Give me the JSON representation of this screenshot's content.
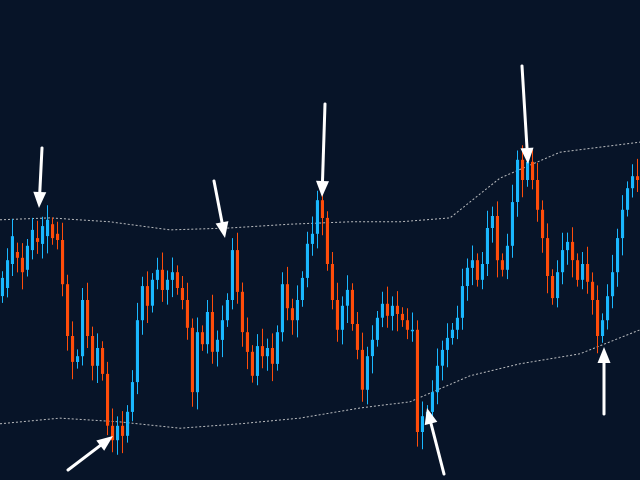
{
  "chart_data": {
    "type": "candlestick",
    "title": "",
    "xlabel": "",
    "ylabel": "",
    "grid": false,
    "legend": "none",
    "background": "#071428",
    "colors": {
      "bull": "#1ab8ff",
      "bear": "#ff4d0a",
      "band": "#d8d8d8",
      "arrow": "#ffffff"
    },
    "ylim": [
      0,
      100
    ],
    "xlim": [
      0,
      128
    ],
    "bands": [
      {
        "name": "",
        "points": [
          [
            0,
            54.2
          ],
          [
            10,
            54.6
          ],
          [
            22,
            53.8
          ],
          [
            34,
            52.1
          ],
          [
            46,
            52.5
          ],
          [
            58,
            53.3
          ],
          [
            70,
            53.8
          ],
          [
            80,
            53.8
          ],
          [
            90,
            54.6
          ],
          [
            100,
            62.9
          ],
          [
            112,
            68.3
          ],
          [
            128,
            70.4
          ]
        ]
      },
      {
        "name": "",
        "points": [
          [
            0,
            11.7
          ],
          [
            12,
            12.9
          ],
          [
            24,
            12.1
          ],
          [
            36,
            10.8
          ],
          [
            48,
            11.7
          ],
          [
            60,
            12.9
          ],
          [
            72,
            15.0
          ],
          [
            82,
            16.3
          ],
          [
            94,
            21.7
          ],
          [
            104,
            24.2
          ],
          [
            116,
            26.3
          ],
          [
            128,
            31.3
          ]
        ]
      }
    ],
    "candles": [
      [
        0,
        38.3,
        42.1
      ],
      [
        1,
        40.0,
        45.8
      ],
      [
        2,
        45.0,
        50.8
      ],
      [
        3,
        47.5,
        46.3
      ],
      [
        4,
        46.3,
        43.3
      ],
      [
        5,
        43.8,
        48.8
      ],
      [
        6,
        47.9,
        52.1
      ],
      [
        7,
        50.4,
        49.6
      ],
      [
        8,
        49.2,
        52.9
      ],
      [
        9,
        50.8,
        54.2
      ],
      [
        10,
        53.3,
        50.4
      ],
      [
        11,
        51.3,
        50.0
      ],
      [
        12,
        50.0,
        40.8
      ],
      [
        13,
        40.8,
        30.0
      ],
      [
        14,
        30.0,
        24.6
      ],
      [
        15,
        24.6,
        25.8
      ],
      [
        16,
        25.8,
        37.5
      ],
      [
        17,
        37.5,
        30.0
      ],
      [
        18,
        30.0,
        23.8
      ],
      [
        19,
        23.8,
        27.5
      ],
      [
        20,
        27.5,
        22.1
      ],
      [
        21,
        22.1,
        11.3
      ],
      [
        22,
        11.3,
        8.3
      ],
      [
        23,
        8.3,
        11.3
      ],
      [
        24,
        11.3,
        9.2
      ],
      [
        25,
        9.2,
        14.2
      ],
      [
        26,
        14.2,
        20.4
      ],
      [
        27,
        20.4,
        33.3
      ],
      [
        28,
        33.3,
        40.4
      ],
      [
        29,
        40.4,
        36.3
      ],
      [
        30,
        36.3,
        41.7
      ],
      [
        31,
        41.7,
        43.8
      ],
      [
        32,
        43.8,
        39.6
      ],
      [
        33,
        39.6,
        41.7
      ],
      [
        34,
        41.7,
        43.3
      ],
      [
        35,
        43.3,
        40.0
      ],
      [
        36,
        40.0,
        37.5
      ],
      [
        37,
        37.5,
        31.7
      ],
      [
        38,
        31.7,
        18.3
      ],
      [
        39,
        18.3,
        30.8
      ],
      [
        40,
        30.8,
        28.3
      ],
      [
        41,
        28.3,
        35.0
      ],
      [
        42,
        35.0,
        26.7
      ],
      [
        43,
        26.7,
        29.2
      ],
      [
        44,
        29.2,
        33.3
      ],
      [
        45,
        33.3,
        37.5
      ],
      [
        46,
        37.5,
        47.9
      ],
      [
        47,
        47.9,
        39.2
      ],
      [
        48,
        39.2,
        30.8
      ],
      [
        49,
        30.8,
        26.7
      ],
      [
        50,
        26.7,
        21.7
      ],
      [
        51,
        21.7,
        27.9
      ],
      [
        52,
        27.9,
        25.8
      ],
      [
        53,
        25.8,
        27.5
      ],
      [
        54,
        27.5,
        24.2
      ],
      [
        55,
        24.2,
        30.8
      ],
      [
        56,
        30.8,
        40.8
      ],
      [
        57,
        40.8,
        35.8
      ],
      [
        58,
        35.8,
        33.3
      ],
      [
        59,
        33.3,
        37.5
      ],
      [
        60,
        37.5,
        42.1
      ],
      [
        61,
        42.1,
        49.2
      ],
      [
        62,
        49.2,
        51.3
      ],
      [
        63,
        51.3,
        58.3
      ],
      [
        64,
        58.3,
        54.6
      ],
      [
        65,
        54.6,
        45.0
      ],
      [
        66,
        45.0,
        37.5
      ],
      [
        67,
        37.5,
        31.3
      ],
      [
        68,
        31.3,
        36.3
      ],
      [
        69,
        36.3,
        39.6
      ],
      [
        70,
        39.6,
        32.5
      ],
      [
        71,
        32.5,
        27.1
      ],
      [
        72,
        27.1,
        18.8
      ],
      [
        73,
        18.8,
        25.8
      ],
      [
        74,
        25.8,
        29.2
      ],
      [
        75,
        29.2,
        33.8
      ],
      [
        76,
        33.8,
        36.7
      ],
      [
        77,
        36.7,
        34.2
      ],
      [
        78,
        34.2,
        36.3
      ],
      [
        79,
        36.3,
        34.6
      ],
      [
        80,
        34.6,
        33.3
      ],
      [
        81,
        33.3,
        31.3
      ],
      [
        82,
        31.3,
        31.3
      ],
      [
        83,
        31.3,
        10.0
      ],
      [
        84,
        10.0,
        13.3
      ],
      [
        85,
        13.3,
        14.2
      ],
      [
        86,
        14.2,
        18.3
      ],
      [
        87,
        18.3,
        23.8
      ],
      [
        88,
        23.8,
        27.1
      ],
      [
        89,
        27.1,
        29.6
      ],
      [
        90,
        29.6,
        31.3
      ],
      [
        91,
        31.3,
        33.8
      ],
      [
        92,
        33.8,
        40.4
      ],
      [
        93,
        40.4,
        44.2
      ],
      [
        94,
        44.2,
        45.8
      ],
      [
        95,
        45.8,
        41.7
      ],
      [
        96,
        41.7,
        45.0
      ],
      [
        97,
        45.0,
        52.5
      ],
      [
        98,
        52.5,
        55.0
      ],
      [
        99,
        55.0,
        45.8
      ],
      [
        100,
        45.8,
        43.8
      ],
      [
        101,
        43.8,
        48.8
      ],
      [
        102,
        48.8,
        57.9
      ],
      [
        103,
        57.9,
        66.7
      ],
      [
        104,
        66.7,
        62.5
      ],
      [
        105,
        62.5,
        66.3
      ],
      [
        106,
        66.3,
        62.5
      ],
      [
        107,
        62.5,
        56.3
      ],
      [
        108,
        56.3,
        50.4
      ],
      [
        109,
        50.4,
        42.5
      ],
      [
        110,
        42.5,
        37.9
      ],
      [
        111,
        37.9,
        43.3
      ],
      [
        112,
        43.3,
        47.9
      ],
      [
        113,
        47.9,
        49.6
      ],
      [
        114,
        49.6,
        45.8
      ],
      [
        115,
        45.8,
        41.7
      ],
      [
        116,
        41.7,
        45.0
      ],
      [
        117,
        45.0,
        41.3
      ],
      [
        118,
        41.3,
        37.5
      ],
      [
        119,
        37.5,
        30.0
      ],
      [
        120,
        30.0,
        33.3
      ],
      [
        121,
        33.3,
        38.3
      ],
      [
        122,
        38.3,
        43.3
      ],
      [
        123,
        43.3,
        50.4
      ],
      [
        124,
        50.4,
        56.3
      ],
      [
        125,
        56.3,
        60.8
      ],
      [
        126,
        60.8,
        63.3
      ],
      [
        127,
        63.3,
        62.5
      ]
    ],
    "arrows": [
      {
        "index": 10,
        "direction": "down"
      },
      {
        "index": 56,
        "direction": "down"
      },
      {
        "index": 80,
        "direction": "down"
      },
      {
        "index": 130,
        "direction": "down"
      },
      {
        "index": 28,
        "direction": "up"
      },
      {
        "index": 106,
        "direction": "up"
      },
      {
        "index": 150,
        "direction": "up"
      }
    ]
  }
}
